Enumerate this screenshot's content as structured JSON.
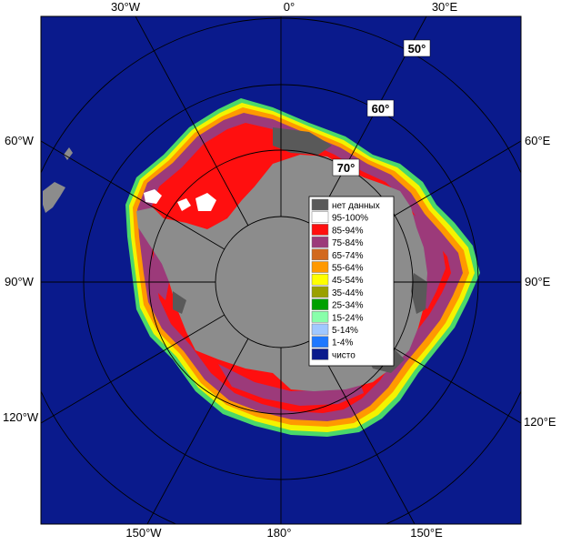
{
  "map": {
    "projection": "south-polar-stereographic",
    "top_labels": [
      "30°W",
      "0°",
      "30°E"
    ],
    "left_labels": [
      "60°W",
      "90°W",
      "120°W"
    ],
    "right_labels": [
      "60°E",
      "90°E",
      "120°E"
    ],
    "bottom_labels": [
      "150°W",
      "180°",
      "150°E"
    ],
    "latitude_labels": [
      "50°",
      "60°",
      "70°"
    ],
    "colors": {
      "ocean": "#0a1a8c",
      "land": "#8c8c8c",
      "ice_high": "#ff0f0f",
      "ice_mid": "#9c3a7a",
      "no_data": "#595959",
      "grid": "#000000"
    }
  },
  "legend": {
    "items": [
      {
        "label": "нет данных",
        "color": "#595959"
      },
      {
        "label": "95-100%",
        "color": "#ffffff"
      },
      {
        "label": "85-94%",
        "color": "#ff0f0f"
      },
      {
        "label": "75-84%",
        "color": "#9c3a7a"
      },
      {
        "label": "65-74%",
        "color": "#d2691e"
      },
      {
        "label": "55-64%",
        "color": "#ff9900"
      },
      {
        "label": "45-54%",
        "color": "#ffff00"
      },
      {
        "label": "35-44%",
        "color": "#9aa000"
      },
      {
        "label": "25-34%",
        "color": "#00a000"
      },
      {
        "label": "15-24%",
        "color": "#88ffaa"
      },
      {
        "label": "5-14%",
        "color": "#a0c8ff"
      },
      {
        "label": "1-4%",
        "color": "#1e78ff"
      },
      {
        "label": "чисто",
        "color": "#0a1a8c"
      }
    ]
  }
}
